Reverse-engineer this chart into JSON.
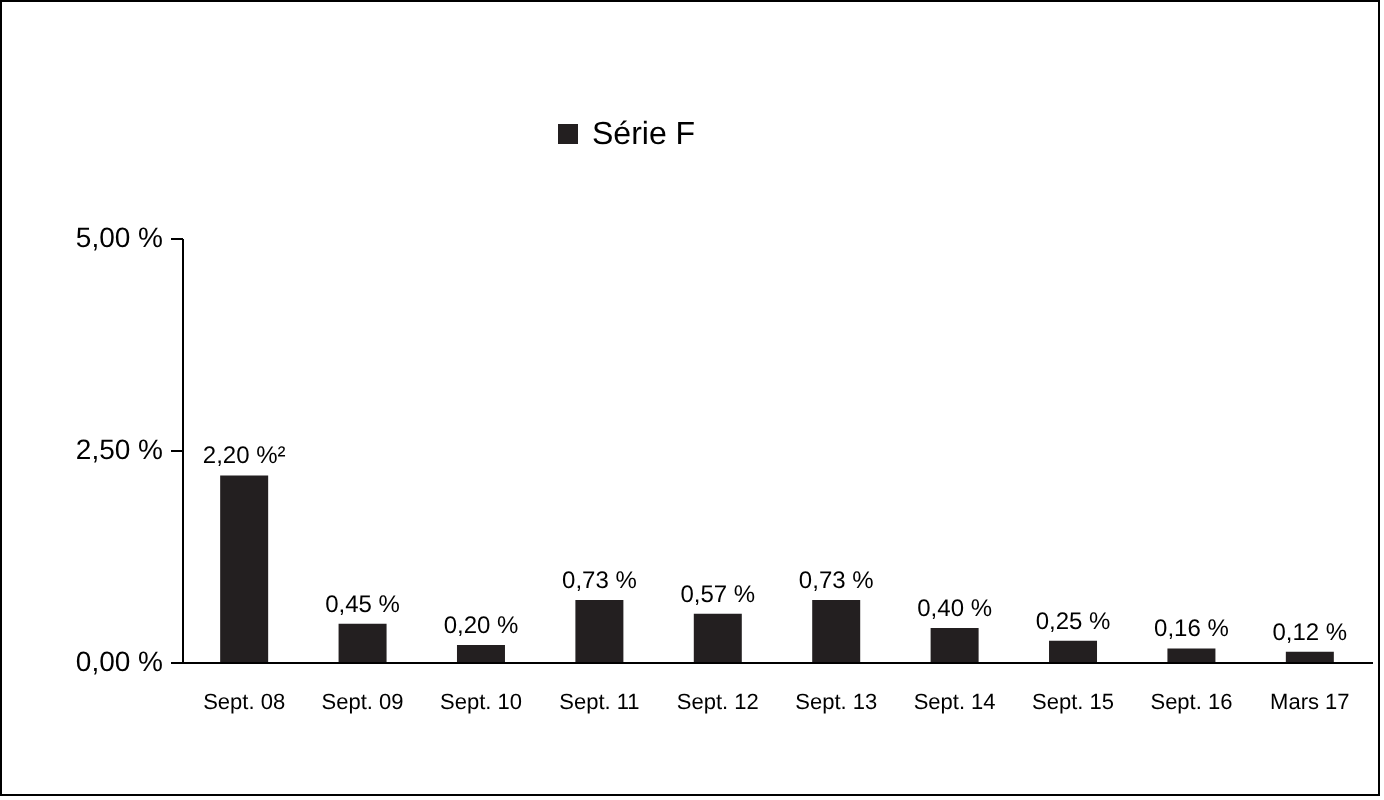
{
  "chart_data": {
    "type": "bar",
    "categories": [
      "Sept. 08",
      "Sept. 09",
      "Sept. 10",
      "Sept. 11",
      "Sept. 12",
      "Sept. 13",
      "Sept. 14",
      "Sept. 15",
      "Sept. 16",
      "Mars 17"
    ],
    "series": [
      {
        "name": "Série F",
        "color": "#231f20",
        "values": [
          2.2,
          0.45,
          0.2,
          0.73,
          0.57,
          0.73,
          0.4,
          0.25,
          0.16,
          0.12
        ],
        "value_labels": [
          "2,20 %²",
          "0,45 %",
          "0,20 %",
          "0,73 %",
          "0,57 %",
          "0,73 %",
          "0,40 %",
          "0,25 %",
          "0,16 %",
          "0,12 %"
        ]
      }
    ],
    "ylim": [
      0,
      5
    ],
    "yticks": [
      {
        "value": 0,
        "label": "0,00 %"
      },
      {
        "value": 2.5,
        "label": "2,50 %"
      },
      {
        "value": 5,
        "label": "5,00 %"
      }
    ],
    "grid": false,
    "legend": "top"
  }
}
